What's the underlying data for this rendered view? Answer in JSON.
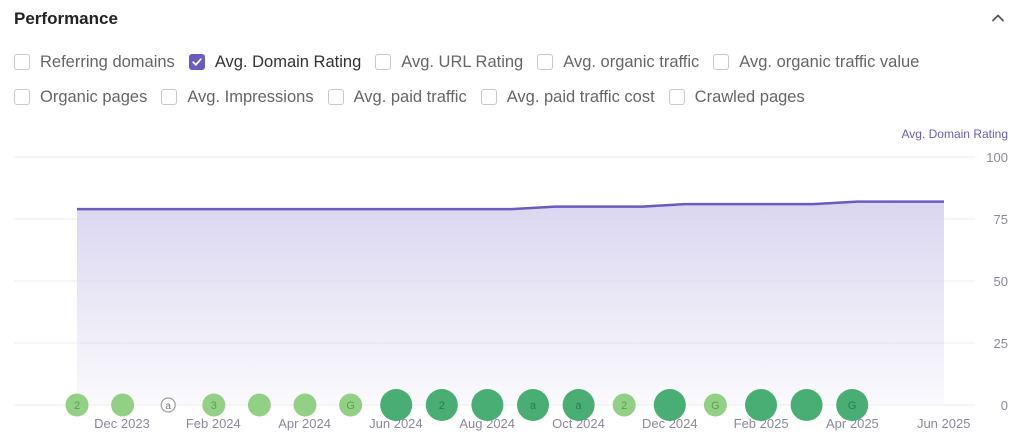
{
  "panel": {
    "title": "Performance",
    "collapse_icon": "chevron-up-icon"
  },
  "metrics": {
    "row1": [
      {
        "label": "Referring domains",
        "checked": false
      },
      {
        "label": "Avg. Domain Rating",
        "checked": true
      },
      {
        "label": "Avg. URL Rating",
        "checked": false
      },
      {
        "label": "Avg. organic traffic",
        "checked": false
      },
      {
        "label": "Avg. organic traffic value",
        "checked": false
      }
    ],
    "row2": [
      {
        "label": "Organic pages",
        "checked": false
      },
      {
        "label": "Avg. Impressions",
        "checked": false
      },
      {
        "label": "Avg. paid traffic",
        "checked": false
      },
      {
        "label": "Avg. paid traffic cost",
        "checked": false
      },
      {
        "label": "Crawled pages",
        "checked": false
      }
    ]
  },
  "colors": {
    "accent": "#6a5bbf",
    "area_top": "#d9d4ef",
    "grid": "#ececf2",
    "tick": "#8a8a99",
    "marker_light": "#8ccf7e",
    "marker_dark": "#3eaa6b"
  },
  "chart_data": {
    "type": "area",
    "series": [
      {
        "name": "Avg. Domain Rating",
        "x": [
          "2023-10-15",
          "2023-11-15",
          "2023-12-15",
          "2024-01-15",
          "2024-02-15",
          "2024-03-15",
          "2024-04-15",
          "2024-05-15",
          "2024-06-15",
          "2024-07-15",
          "2024-08-15",
          "2024-09-15",
          "2024-10-15",
          "2024-11-15",
          "2024-12-15",
          "2025-01-15",
          "2025-02-15",
          "2025-03-15",
          "2025-04-15",
          "2025-05-15",
          "2025-06-15"
        ],
        "values": [
          79,
          79,
          79,
          79,
          79,
          79,
          79,
          79,
          79,
          79,
          79,
          80,
          80,
          80,
          81,
          81,
          81,
          81,
          82,
          82,
          82
        ]
      }
    ],
    "x_ticks": [
      "Dec 2023",
      "Feb 2024",
      "Apr 2024",
      "Jun 2024",
      "Aug 2024",
      "Oct 2024",
      "Dec 2024",
      "Feb 2025",
      "Apr 2025",
      "Jun 2025"
    ],
    "y_ticks": [
      "100",
      "75",
      "50",
      "25",
      "0"
    ],
    "ylim": [
      0,
      100
    ],
    "grid": true,
    "markers": [
      {
        "label": "2",
        "tone": "light",
        "size": "small"
      },
      {
        "label": "",
        "tone": "light",
        "size": "small"
      },
      {
        "label": "a",
        "tone": "outline",
        "size": "tiny"
      },
      {
        "label": "3",
        "tone": "light",
        "size": "small"
      },
      {
        "label": "",
        "tone": "light",
        "size": "small"
      },
      {
        "label": "",
        "tone": "light",
        "size": "small"
      },
      {
        "label": "G",
        "tone": "light",
        "size": "small"
      },
      {
        "label": "",
        "tone": "dark",
        "size": "large"
      },
      {
        "label": "2",
        "tone": "dark",
        "size": "large"
      },
      {
        "label": "",
        "tone": "dark",
        "size": "large"
      },
      {
        "label": "a",
        "tone": "dark",
        "size": "large"
      },
      {
        "label": "a",
        "tone": "dark",
        "size": "large"
      },
      {
        "label": "2",
        "tone": "light",
        "size": "small"
      },
      {
        "label": "",
        "tone": "dark",
        "size": "large"
      },
      {
        "label": "G",
        "tone": "light",
        "size": "small"
      },
      {
        "label": "",
        "tone": "dark",
        "size": "large"
      },
      {
        "label": "",
        "tone": "dark",
        "size": "large"
      },
      {
        "label": "G",
        "tone": "dark",
        "size": "large"
      }
    ]
  }
}
